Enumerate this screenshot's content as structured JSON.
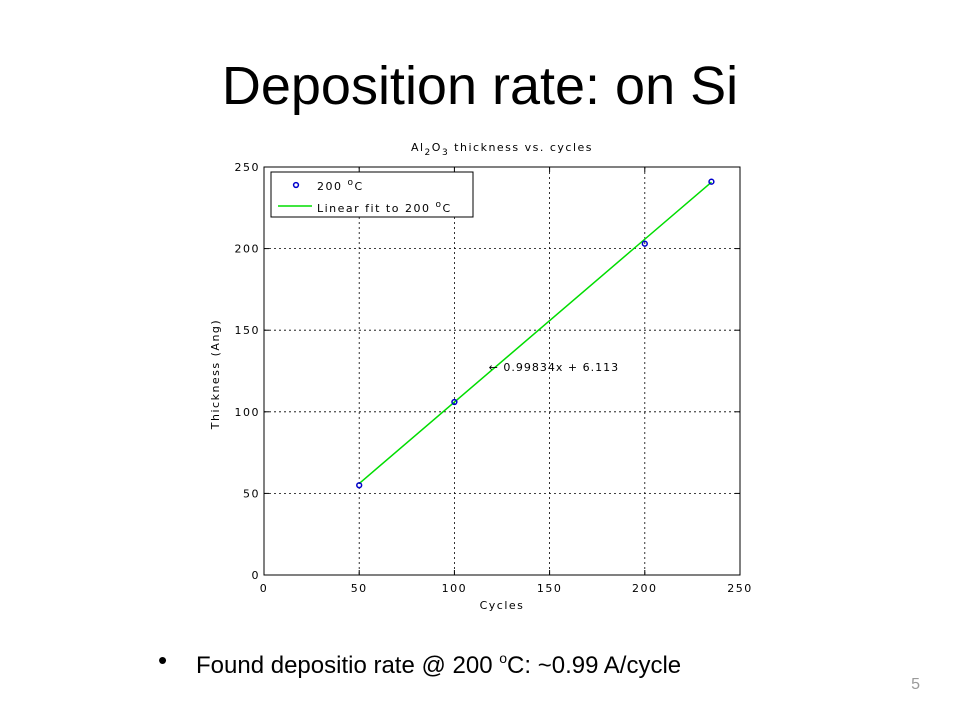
{
  "slide": {
    "title": "Deposition rate: on Si",
    "bullet_marker": "•",
    "bullet_pre": "Found depositio rate @ 200 ",
    "bullet_sup": "o",
    "bullet_post": "C: ~0.99 A/cycle",
    "page_number": "5"
  },
  "chart_data": {
    "type": "scatter",
    "title": "Al2O3 thickness vs. cycles",
    "xlabel": "Cycles",
    "ylabel": "Thickness (Ang)",
    "xlim": [
      0,
      250
    ],
    "ylim": [
      0,
      250
    ],
    "xticks": [
      0,
      50,
      100,
      150,
      200,
      250
    ],
    "yticks": [
      0,
      50,
      100,
      150,
      200,
      250
    ],
    "grid": true,
    "legend_position": "top-left",
    "series": [
      {
        "name": "200 oC",
        "kind": "points",
        "color": "#0000cc",
        "x": [
          50,
          100,
          200,
          235
        ],
        "y": [
          55,
          106,
          203,
          241
        ]
      },
      {
        "name": "Linear fit to 200 oC",
        "kind": "line",
        "color": "#00dd00",
        "x": [
          50,
          235
        ],
        "slope": 0.99834,
        "intercept": 6.113
      }
    ],
    "annotation": {
      "text": "← 0.99834x + 6.113",
      "x": 118,
      "y": 125
    }
  }
}
